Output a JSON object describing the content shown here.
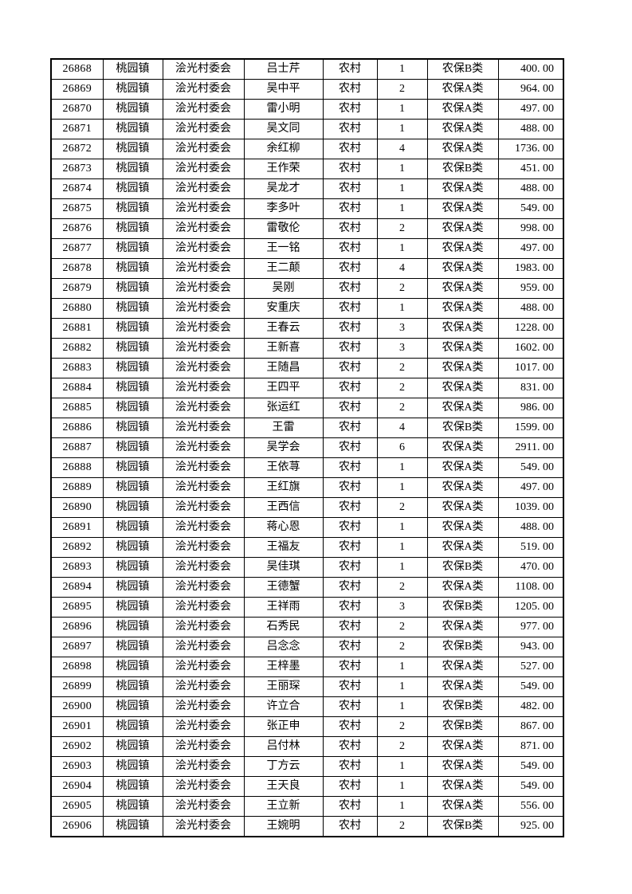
{
  "page": {
    "kind": "pension-roster-table-page",
    "background_color": "#ffffff",
    "border_color": "#000000",
    "text_color": "#000000"
  },
  "table": {
    "rows": [
      {
        "id": "26868",
        "town": "桃园镇",
        "village": "浍光村委会",
        "name": "吕士芹",
        "category": "农村",
        "count": "1",
        "insurance": "农保B类",
        "amount": "400. 00"
      },
      {
        "id": "26869",
        "town": "桃园镇",
        "village": "浍光村委会",
        "name": "吴中平",
        "category": "农村",
        "count": "2",
        "insurance": "农保A类",
        "amount": "964. 00"
      },
      {
        "id": "26870",
        "town": "桃园镇",
        "village": "浍光村委会",
        "name": "雷小明",
        "category": "农村",
        "count": "1",
        "insurance": "农保A类",
        "amount": "497. 00"
      },
      {
        "id": "26871",
        "town": "桃园镇",
        "village": "浍光村委会",
        "name": "吴文同",
        "category": "农村",
        "count": "1",
        "insurance": "农保A类",
        "amount": "488. 00"
      },
      {
        "id": "26872",
        "town": "桃园镇",
        "village": "浍光村委会",
        "name": "余红柳",
        "category": "农村",
        "count": "4",
        "insurance": "农保A类",
        "amount": "1736. 00"
      },
      {
        "id": "26873",
        "town": "桃园镇",
        "village": "浍光村委会",
        "name": "王作荣",
        "category": "农村",
        "count": "1",
        "insurance": "农保B类",
        "amount": "451. 00"
      },
      {
        "id": "26874",
        "town": "桃园镇",
        "village": "浍光村委会",
        "name": "吴龙才",
        "category": "农村",
        "count": "1",
        "insurance": "农保A类",
        "amount": "488. 00"
      },
      {
        "id": "26875",
        "town": "桃园镇",
        "village": "浍光村委会",
        "name": "李多叶",
        "category": "农村",
        "count": "1",
        "insurance": "农保A类",
        "amount": "549. 00"
      },
      {
        "id": "26876",
        "town": "桃园镇",
        "village": "浍光村委会",
        "name": "雷敬伦",
        "category": "农村",
        "count": "2",
        "insurance": "农保A类",
        "amount": "998. 00"
      },
      {
        "id": "26877",
        "town": "桃园镇",
        "village": "浍光村委会",
        "name": "王一铭",
        "category": "农村",
        "count": "1",
        "insurance": "农保A类",
        "amount": "497. 00"
      },
      {
        "id": "26878",
        "town": "桃园镇",
        "village": "浍光村委会",
        "name": "王二颠",
        "category": "农村",
        "count": "4",
        "insurance": "农保A类",
        "amount": "1983. 00"
      },
      {
        "id": "26879",
        "town": "桃园镇",
        "village": "浍光村委会",
        "name": "吴刚",
        "category": "农村",
        "count": "2",
        "insurance": "农保A类",
        "amount": "959. 00"
      },
      {
        "id": "26880",
        "town": "桃园镇",
        "village": "浍光村委会",
        "name": "安重庆",
        "category": "农村",
        "count": "1",
        "insurance": "农保A类",
        "amount": "488. 00"
      },
      {
        "id": "26881",
        "town": "桃园镇",
        "village": "浍光村委会",
        "name": "王春云",
        "category": "农村",
        "count": "3",
        "insurance": "农保A类",
        "amount": "1228. 00"
      },
      {
        "id": "26882",
        "town": "桃园镇",
        "village": "浍光村委会",
        "name": "王新喜",
        "category": "农村",
        "count": "3",
        "insurance": "农保A类",
        "amount": "1602. 00"
      },
      {
        "id": "26883",
        "town": "桃园镇",
        "village": "浍光村委会",
        "name": "王随昌",
        "category": "农村",
        "count": "2",
        "insurance": "农保A类",
        "amount": "1017. 00"
      },
      {
        "id": "26884",
        "town": "桃园镇",
        "village": "浍光村委会",
        "name": "王四平",
        "category": "农村",
        "count": "2",
        "insurance": "农保A类",
        "amount": "831. 00"
      },
      {
        "id": "26885",
        "town": "桃园镇",
        "village": "浍光村委会",
        "name": "张运红",
        "category": "农村",
        "count": "2",
        "insurance": "农保A类",
        "amount": "986. 00"
      },
      {
        "id": "26886",
        "town": "桃园镇",
        "village": "浍光村委会",
        "name": "王雷",
        "category": "农村",
        "count": "4",
        "insurance": "农保B类",
        "amount": "1599. 00"
      },
      {
        "id": "26887",
        "town": "桃园镇",
        "village": "浍光村委会",
        "name": "吴学会",
        "category": "农村",
        "count": "6",
        "insurance": "农保A类",
        "amount": "2911. 00"
      },
      {
        "id": "26888",
        "town": "桃园镇",
        "village": "浍光村委会",
        "name": "王依荨",
        "category": "农村",
        "count": "1",
        "insurance": "农保A类",
        "amount": "549. 00"
      },
      {
        "id": "26889",
        "town": "桃园镇",
        "village": "浍光村委会",
        "name": "王红旗",
        "category": "农村",
        "count": "1",
        "insurance": "农保A类",
        "amount": "497. 00"
      },
      {
        "id": "26890",
        "town": "桃园镇",
        "village": "浍光村委会",
        "name": "王西信",
        "category": "农村",
        "count": "2",
        "insurance": "农保A类",
        "amount": "1039. 00"
      },
      {
        "id": "26891",
        "town": "桃园镇",
        "village": "浍光村委会",
        "name": "蒋心恩",
        "category": "农村",
        "count": "1",
        "insurance": "农保A类",
        "amount": "488. 00"
      },
      {
        "id": "26892",
        "town": "桃园镇",
        "village": "浍光村委会",
        "name": "王福友",
        "category": "农村",
        "count": "1",
        "insurance": "农保A类",
        "amount": "519. 00"
      },
      {
        "id": "26893",
        "town": "桃园镇",
        "village": "浍光村委会",
        "name": "吴佳琪",
        "category": "农村",
        "count": "1",
        "insurance": "农保B类",
        "amount": "470. 00"
      },
      {
        "id": "26894",
        "town": "桃园镇",
        "village": "浍光村委会",
        "name": "王德蟹",
        "category": "农村",
        "count": "2",
        "insurance": "农保A类",
        "amount": "1108. 00"
      },
      {
        "id": "26895",
        "town": "桃园镇",
        "village": "浍光村委会",
        "name": "王祥雨",
        "category": "农村",
        "count": "3",
        "insurance": "农保B类",
        "amount": "1205. 00"
      },
      {
        "id": "26896",
        "town": "桃园镇",
        "village": "浍光村委会",
        "name": "石秀民",
        "category": "农村",
        "count": "2",
        "insurance": "农保A类",
        "amount": "977. 00"
      },
      {
        "id": "26897",
        "town": "桃园镇",
        "village": "浍光村委会",
        "name": "吕念念",
        "category": "农村",
        "count": "2",
        "insurance": "农保B类",
        "amount": "943. 00"
      },
      {
        "id": "26898",
        "town": "桃园镇",
        "village": "浍光村委会",
        "name": "王梓墨",
        "category": "农村",
        "count": "1",
        "insurance": "农保A类",
        "amount": "527. 00"
      },
      {
        "id": "26899",
        "town": "桃园镇",
        "village": "浍光村委会",
        "name": "王丽琛",
        "category": "农村",
        "count": "1",
        "insurance": "农保A类",
        "amount": "549. 00"
      },
      {
        "id": "26900",
        "town": "桃园镇",
        "village": "浍光村委会",
        "name": "许立合",
        "category": "农村",
        "count": "1",
        "insurance": "农保B类",
        "amount": "482. 00"
      },
      {
        "id": "26901",
        "town": "桃园镇",
        "village": "浍光村委会",
        "name": "张正申",
        "category": "农村",
        "count": "2",
        "insurance": "农保B类",
        "amount": "867. 00"
      },
      {
        "id": "26902",
        "town": "桃园镇",
        "village": "浍光村委会",
        "name": "吕付林",
        "category": "农村",
        "count": "2",
        "insurance": "农保A类",
        "amount": "871. 00"
      },
      {
        "id": "26903",
        "town": "桃园镇",
        "village": "浍光村委会",
        "name": "丁方云",
        "category": "农村",
        "count": "1",
        "insurance": "农保A类",
        "amount": "549. 00"
      },
      {
        "id": "26904",
        "town": "桃园镇",
        "village": "浍光村委会",
        "name": "王天良",
        "category": "农村",
        "count": "1",
        "insurance": "农保A类",
        "amount": "549. 00"
      },
      {
        "id": "26905",
        "town": "桃园镇",
        "village": "浍光村委会",
        "name": "王立新",
        "category": "农村",
        "count": "1",
        "insurance": "农保A类",
        "amount": "556. 00"
      },
      {
        "id": "26906",
        "town": "桃园镇",
        "village": "浍光村委会",
        "name": "王婉明",
        "category": "农村",
        "count": "2",
        "insurance": "农保B类",
        "amount": "925. 00"
      }
    ]
  }
}
